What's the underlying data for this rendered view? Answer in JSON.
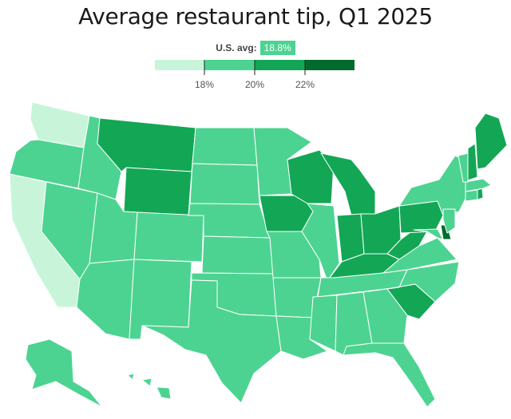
{
  "title": "Average restaurant tip, Q1 2025",
  "us_avg": {
    "label": "U.S. avg:",
    "value": "18.8%"
  },
  "legend": {
    "bins": [
      {
        "color": "#c8f5da"
      },
      {
        "color": "#4dd391"
      },
      {
        "color": "#13a755"
      },
      {
        "color": "#006b2c"
      }
    ],
    "ticks": [
      "18%",
      "20%",
      "22%"
    ]
  },
  "colors": {
    "light": "#c8f5da",
    "mid": "#4dd391",
    "dark": "#13a755",
    "darkest": "#006b2c",
    "border": "#ffffff"
  },
  "states_by_bin": {
    "below_18": [
      "Washington",
      "California"
    ],
    "18_to_20": [
      "Oregon",
      "Nevada",
      "Idaho",
      "Utah",
      "Arizona",
      "Colorado",
      "New Mexico",
      "North Dakota",
      "South Dakota",
      "Nebraska",
      "Kansas",
      "Oklahoma",
      "Texas",
      "Minnesota",
      "Missouri",
      "Arkansas",
      "Louisiana",
      "Illinois",
      "Mississippi",
      "Alabama",
      "Tennessee",
      "Georgia",
      "Florida",
      "North Carolina",
      "Virginia",
      "Maryland",
      "New Jersey",
      "New York",
      "Vermont",
      "Massachusetts",
      "Connecticut",
      "Alaska",
      "Hawaii"
    ],
    "20_to_22": [
      "Montana",
      "Wyoming",
      "Wisconsin",
      "Iowa",
      "Michigan",
      "Indiana",
      "Ohio",
      "Kentucky",
      "West Virginia",
      "Pennsylvania",
      "South Carolina",
      "Maine",
      "New Hampshire",
      "Rhode Island"
    ],
    "above_22": [
      "Delaware"
    ]
  }
}
